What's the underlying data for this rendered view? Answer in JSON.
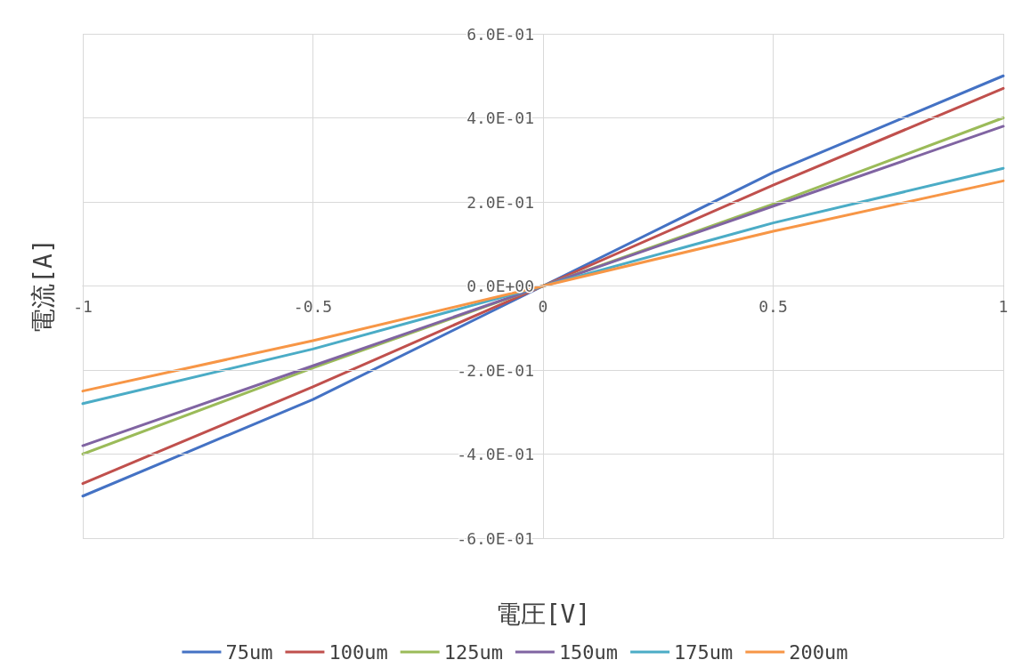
{
  "chart_data": {
    "type": "line",
    "xlabel": "電圧[V]",
    "ylabel": "電流[A]",
    "x": [
      -1,
      -0.5,
      0,
      0.5,
      1
    ],
    "series": [
      {
        "name": "75um",
        "color": "#4472c4",
        "values": [
          -0.5,
          -0.27,
          0,
          0.27,
          0.5
        ]
      },
      {
        "name": "100um",
        "color": "#c0504d",
        "values": [
          -0.47,
          -0.24,
          0,
          0.24,
          0.47
        ]
      },
      {
        "name": "125um",
        "color": "#9bbb59",
        "values": [
          -0.4,
          -0.195,
          0,
          0.195,
          0.4
        ]
      },
      {
        "name": "150um",
        "color": "#8064a2",
        "values": [
          -0.38,
          -0.19,
          0,
          0.19,
          0.38
        ]
      },
      {
        "name": "175um",
        "color": "#4bacc6",
        "values": [
          -0.28,
          -0.15,
          0,
          0.15,
          0.28
        ]
      },
      {
        "name": "200um",
        "color": "#f79646",
        "values": [
          -0.25,
          -0.13,
          0,
          0.13,
          0.25
        ]
      }
    ],
    "xlim": [
      -1,
      1
    ],
    "xticks": [
      -1,
      -0.5,
      0,
      0.5,
      1
    ],
    "ylim": [
      -0.6,
      0.6
    ],
    "yticks": [
      {
        "value": -0.6,
        "label": "-6.0E-01"
      },
      {
        "value": -0.4,
        "label": "-4.0E-01"
      },
      {
        "value": -0.2,
        "label": "-2.0E-01"
      },
      {
        "value": 0,
        "label": "0.0E+00"
      },
      {
        "value": 0.2,
        "label": "2.0E-01"
      },
      {
        "value": 0.4,
        "label": "4.0E-01"
      },
      {
        "value": 0.6,
        "label": "6.0E-01"
      }
    ],
    "grid": true,
    "legend": "bottom",
    "marker": "none",
    "line_style": "solid"
  }
}
